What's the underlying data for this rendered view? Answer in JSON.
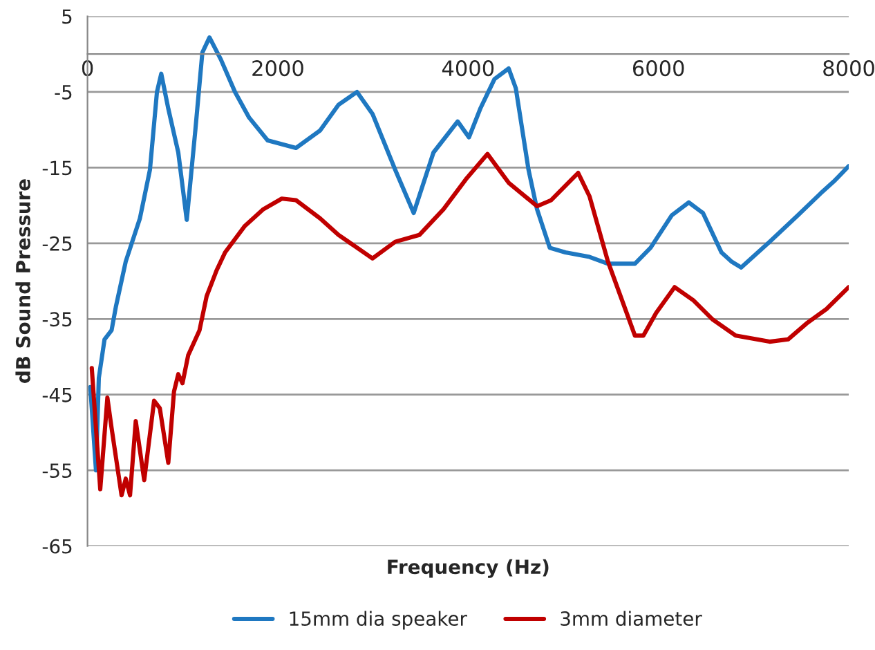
{
  "chart_data": {
    "type": "line",
    "xlabel": "Frequency (Hz)",
    "ylabel": "dB Sound Pressure",
    "xlim": [
      0,
      8000
    ],
    "xticks": [
      0,
      2000,
      4000,
      6000,
      8000
    ],
    "ylim": [
      -65,
      5
    ],
    "yticks": [
      -65,
      -55,
      -45,
      -35,
      -25,
      -15,
      -5,
      5
    ],
    "grid": "y",
    "legend": "bottom",
    "marker": "none",
    "line_style": "solid",
    "series": [
      {
        "name": "15mm dia speaker",
        "color": "#1f78c1",
        "x": [
          30,
          89,
          119,
          179,
          253,
          298,
          402,
          551,
          656,
          730,
          775,
          849,
          954,
          1043,
          1133,
          1207,
          1282,
          1401,
          1550,
          1699,
          1893,
          2191,
          2444,
          2638,
          2832,
          2995,
          3234,
          3428,
          3636,
          3890,
          4009,
          4128,
          4277,
          4426,
          4501,
          4635,
          4724,
          4858,
          5022,
          5276,
          5469,
          5753,
          5917,
          6140,
          6319,
          6468,
          6662,
          6766,
          6870,
          7168,
          7466,
          7705,
          7854,
          8000
        ],
        "values": [
          -44,
          -55,
          -42.8,
          -37.7,
          -36.5,
          -33.4,
          -27.4,
          -21.7,
          -15.3,
          -5,
          -2.6,
          -7.2,
          -13,
          -21.9,
          -10.1,
          0.2,
          2.2,
          -0.7,
          -5,
          -8.4,
          -11.4,
          -12.4,
          -10.1,
          -6.7,
          -5,
          -7.9,
          -15.3,
          -21,
          -13,
          -8.9,
          -11,
          -7.2,
          -3.3,
          -1.9,
          -4.5,
          -15.3,
          -20.5,
          -25.6,
          -26.2,
          -26.8,
          -27.7,
          -27.7,
          -25.6,
          -21.3,
          -19.6,
          -21,
          -26.2,
          -27.4,
          -28.2,
          -24.8,
          -21.3,
          -18.4,
          -16.7,
          -14.8
        ]
      },
      {
        "name": "3mm diameter",
        "color": "#c00000",
        "x": [
          45,
          134,
          209,
          253,
          358,
          402,
          447,
          507,
          596,
          700,
          760,
          849,
          909,
          954,
          998,
          1058,
          1177,
          1252,
          1356,
          1446,
          1654,
          1848,
          2042,
          2191,
          2444,
          2638,
          2742,
          2995,
          3234,
          3487,
          3741,
          3979,
          4203,
          4426,
          4724,
          4873,
          5156,
          5276,
          5469,
          5753,
          5842,
          5976,
          6170,
          6364,
          6572,
          6811,
          7168,
          7362,
          7556,
          7765,
          8000
        ],
        "values": [
          -41.5,
          -57.5,
          -45.4,
          -49.4,
          -58.3,
          -56.1,
          -58.3,
          -48.5,
          -56.3,
          -45.8,
          -46.8,
          -54,
          -44.6,
          -42.3,
          -43.5,
          -39.8,
          -36.5,
          -32,
          -28.6,
          -26.2,
          -22.7,
          -20.5,
          -19.1,
          -19.3,
          -21.7,
          -23.9,
          -24.8,
          -27,
          -24.8,
          -23.9,
          -20.5,
          -16.5,
          -13.2,
          -17,
          -20.1,
          -19.3,
          -15.7,
          -18.8,
          -27.4,
          -37.2,
          -37.2,
          -34.2,
          -30.8,
          -32.5,
          -35.1,
          -37.2,
          -38,
          -37.7,
          -35.6,
          -33.7,
          -30.8
        ]
      }
    ]
  }
}
